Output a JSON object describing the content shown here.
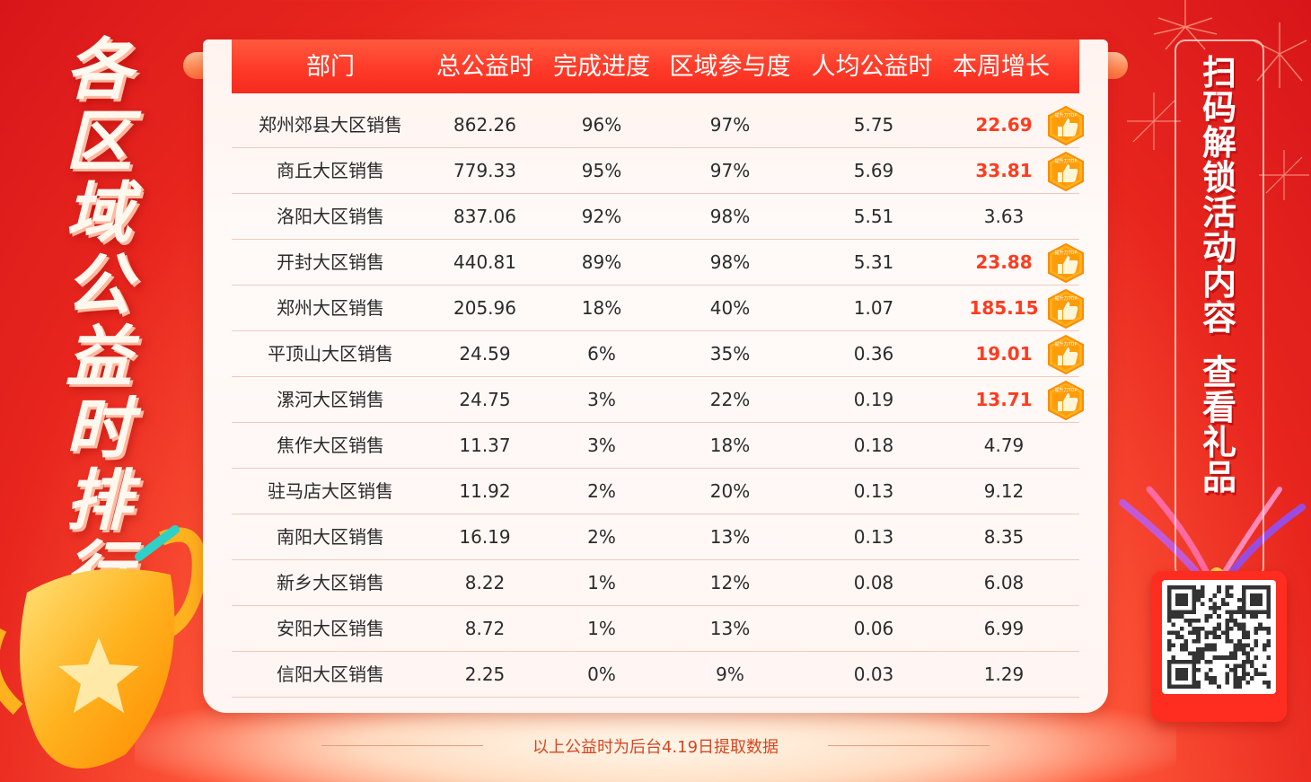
{
  "title_chars": [
    "各",
    "区",
    "域",
    "公",
    "益",
    "时",
    "排",
    "行"
  ],
  "promo": {
    "line1": [
      "扫",
      "码",
      "解",
      "锁",
      "活",
      "动",
      "内",
      "容"
    ],
    "line2": [
      "查",
      "看",
      "礼",
      "品"
    ]
  },
  "columns": [
    "部门",
    "总公益时",
    "完成进度",
    "区域参与度",
    "人均公益时",
    "本周增长"
  ],
  "badge_text": "提升力TOP",
  "rows": [
    {
      "dept": "郑州郊县大区销售",
      "total": "862.26",
      "progress": "96%",
      "participation": "97%",
      "per_capita": "5.75",
      "growth": "22.69",
      "top": true
    },
    {
      "dept": "商丘大区销售",
      "total": "779.33",
      "progress": "95%",
      "participation": "97%",
      "per_capita": "5.69",
      "growth": "33.81",
      "top": true
    },
    {
      "dept": "洛阳大区销售",
      "total": "837.06",
      "progress": "92%",
      "participation": "98%",
      "per_capita": "5.51",
      "growth": "3.63",
      "top": false
    },
    {
      "dept": "开封大区销售",
      "total": "440.81",
      "progress": "89%",
      "participation": "98%",
      "per_capita": "5.31",
      "growth": "23.88",
      "top": true
    },
    {
      "dept": "郑州大区销售",
      "total": "205.96",
      "progress": "18%",
      "participation": "40%",
      "per_capita": "1.07",
      "growth": "185.15",
      "top": true
    },
    {
      "dept": "平顶山大区销售",
      "total": "24.59",
      "progress": "6%",
      "participation": "35%",
      "per_capita": "0.36",
      "growth": "19.01",
      "top": true
    },
    {
      "dept": "漯河大区销售",
      "total": "24.75",
      "progress": "3%",
      "participation": "22%",
      "per_capita": "0.19",
      "growth": "13.71",
      "top": true
    },
    {
      "dept": "焦作大区销售",
      "total": "11.37",
      "progress": "3%",
      "participation": "18%",
      "per_capita": "0.18",
      "growth": "4.79",
      "top": false
    },
    {
      "dept": "驻马店大区销售",
      "total": "11.92",
      "progress": "2%",
      "participation": "20%",
      "per_capita": "0.13",
      "growth": "9.12",
      "top": false
    },
    {
      "dept": "南阳大区销售",
      "total": "16.19",
      "progress": "2%",
      "participation": "13%",
      "per_capita": "0.13",
      "growth": "8.35",
      "top": false
    },
    {
      "dept": "新乡大区销售",
      "total": "8.22",
      "progress": "1%",
      "participation": "12%",
      "per_capita": "0.08",
      "growth": "6.08",
      "top": false
    },
    {
      "dept": "安阳大区销售",
      "total": "8.72",
      "progress": "1%",
      "participation": "13%",
      "per_capita": "0.06",
      "growth": "6.99",
      "top": false
    },
    {
      "dept": "信阳大区销售",
      "total": "2.25",
      "progress": "0%",
      "participation": "9%",
      "per_capita": "0.03",
      "growth": "1.29",
      "top": false
    }
  ],
  "footnote": "以上公益时为后台4.19日提取数据",
  "colors": {
    "accent": "#ff3c1f",
    "header": "#ff3a28",
    "background": "#e8261e"
  },
  "icons": {
    "badge": "thumbs-up-icon",
    "trophy": "trophy-icon",
    "qr": "qr-code-icon"
  }
}
